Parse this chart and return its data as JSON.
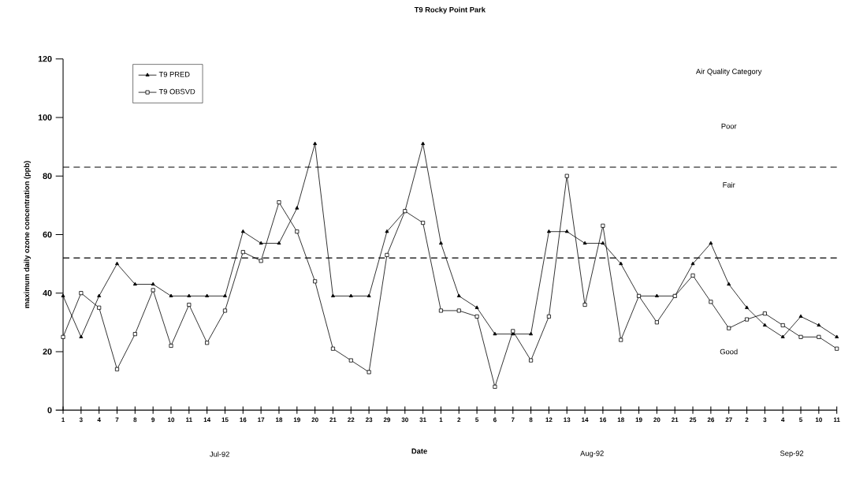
{
  "chart_data": {
    "type": "line",
    "title": "T9  Rocky Point Park",
    "xlabel": "Date",
    "ylabel": "maximum daily ozone concentration (ppb)",
    "categories": [
      "1",
      "3",
      "4",
      "7",
      "8",
      "9",
      "10",
      "11",
      "14",
      "15",
      "16",
      "17",
      "18",
      "19",
      "20",
      "21",
      "22",
      "23",
      "29",
      "30",
      "31",
      "1",
      "2",
      "5",
      "6",
      "7",
      "8",
      "12",
      "13",
      "14",
      "16",
      "18",
      "19",
      "20",
      "21",
      "25",
      "26",
      "27",
      "2",
      "3",
      "4",
      "5",
      "10",
      "11"
    ],
    "series": [
      {
        "name": "T9 PRED",
        "color": "#000000",
        "marker": "triangle",
        "values": [
          39,
          25,
          39,
          50,
          43,
          43,
          39,
          39,
          39,
          39,
          61,
          57,
          57,
          69,
          91,
          39,
          39,
          39,
          61,
          68,
          91,
          57,
          39,
          35,
          26,
          26,
          26,
          61,
          61,
          57,
          57,
          50,
          39,
          39,
          39,
          50,
          57,
          43,
          35,
          29,
          25,
          32,
          29,
          25
        ]
      },
      {
        "name": "T9 OBSVD",
        "color": "#000000",
        "marker": "square",
        "values": [
          25,
          40,
          35,
          14,
          26,
          41,
          22,
          36,
          23,
          34,
          54,
          51,
          71,
          61,
          44,
          21,
          17,
          13,
          53,
          68,
          64,
          34,
          34,
          32,
          8,
          27,
          17,
          32,
          80,
          36,
          63,
          24,
          39,
          30,
          39,
          46,
          37,
          28,
          31,
          33,
          29,
          25,
          25,
          21
        ]
      }
    ],
    "ylim": [
      0,
      120
    ],
    "yticks": [
      0,
      20,
      40,
      60,
      80,
      100,
      120
    ],
    "ref_lines": [
      {
        "axis": "y",
        "value": 83,
        "line_style": "dashed"
      },
      {
        "axis": "y",
        "value": 52,
        "line_style": "dashed"
      }
    ],
    "annotations": [
      "Air Quality Category",
      "Poor",
      "Fair",
      "Good",
      "Jul-92",
      "Aug-92",
      "Sep-92"
    ],
    "legend": "top left"
  }
}
